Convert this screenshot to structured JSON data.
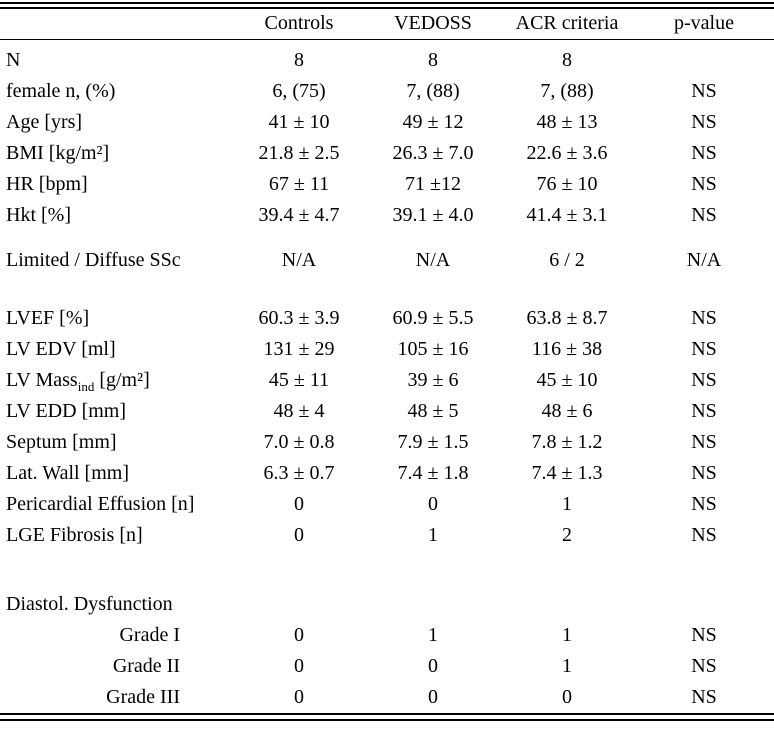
{
  "page": {
    "background_color": "#ffffff",
    "text_color": "#000000"
  },
  "table": {
    "columns": [
      "",
      "Controls",
      "VEDOSS",
      "ACR criteria",
      "p-value"
    ],
    "rows": [
      {
        "type": "spacer",
        "height": 5
      },
      {
        "type": "data",
        "label": "N",
        "values": [
          "8",
          "8",
          "8",
          ""
        ]
      },
      {
        "type": "data",
        "label": "female n, (%)",
        "values": [
          "6, (75)",
          "7, (88)",
          "7, (88)",
          "NS"
        ]
      },
      {
        "type": "data",
        "label": "Age [yrs]",
        "values": [
          "41 ± 10",
          "49 ± 12",
          "48 ± 13",
          "NS"
        ]
      },
      {
        "type": "data",
        "label": "BMI [kg/m²]",
        "values": [
          "21.8 ± 2.5",
          "26.3 ± 7.0",
          "22.6 ± 3.6",
          "NS"
        ]
      },
      {
        "type": "data",
        "label": "HR [bpm]",
        "values": [
          "67 ± 11",
          "71 ±12",
          "76 ± 10",
          "NS"
        ]
      },
      {
        "type": "data",
        "label": "Hkt [%]",
        "values": [
          "39.4 ± 4.7",
          "39.1 ± 4.0",
          "41.4 ± 3.1",
          "NS"
        ]
      },
      {
        "type": "spacer",
        "height": 14
      },
      {
        "type": "data",
        "label": "Limited / Diffuse SSc",
        "values": [
          "N/A",
          "N/A",
          "6 / 2",
          "N/A"
        ]
      },
      {
        "type": "spacer",
        "height": 27
      },
      {
        "type": "data",
        "label": "LVEF [%]",
        "values": [
          "60.3 ± 3.9",
          "60.9 ± 5.5",
          "63.8 ± 8.7",
          "NS"
        ]
      },
      {
        "type": "data",
        "label": "LV EDV [ml]",
        "values": [
          "131 ± 29",
          "105 ± 16",
          "116 ± 38",
          "NS"
        ]
      },
      {
        "type": "data",
        "label": "LV Massind [g/m²]",
        "label_parts": [
          {
            "text": "LV Mass"
          },
          {
            "text": "ind",
            "sub": true
          },
          {
            "text": " [g/m²]"
          }
        ],
        "values": [
          "45 ± 11",
          "39 ± 6",
          "45 ± 10",
          "NS"
        ]
      },
      {
        "type": "data",
        "label": "LV EDD [mm]",
        "values": [
          "48 ± 4",
          "48 ± 5",
          "48 ± 6",
          "NS"
        ]
      },
      {
        "type": "data",
        "label": "Septum [mm]",
        "values": [
          "7.0 ± 0.8",
          "7.9 ± 1.5",
          "7.8 ± 1.2",
          "NS"
        ]
      },
      {
        "type": "data",
        "label": "Lat. Wall [mm]",
        "values": [
          "6.3 ± 0.7",
          "7.4 ± 1.8",
          "7.4 ± 1.3",
          "NS"
        ]
      },
      {
        "type": "data",
        "label": "Pericardial Effusion [n]",
        "values": [
          "0",
          "0",
          "1",
          "NS"
        ]
      },
      {
        "type": "data",
        "label": "LGE Fibrosis [n]",
        "values": [
          "0",
          "1",
          "2",
          "NS"
        ]
      },
      {
        "type": "spacer",
        "height": 38
      },
      {
        "type": "section",
        "label": "Diastol. Dysfunction",
        "values": [
          "",
          "",
          "",
          ""
        ]
      },
      {
        "type": "data",
        "indent": true,
        "label": "Grade I",
        "values": [
          "0",
          "1",
          "1",
          "NS"
        ]
      },
      {
        "type": "data",
        "indent": true,
        "label": "Grade II",
        "values": [
          "0",
          "0",
          "1",
          "NS"
        ]
      },
      {
        "type": "data",
        "indent": true,
        "label": "Grade III",
        "values": [
          "0",
          "0",
          "0",
          "NS"
        ]
      }
    ]
  }
}
